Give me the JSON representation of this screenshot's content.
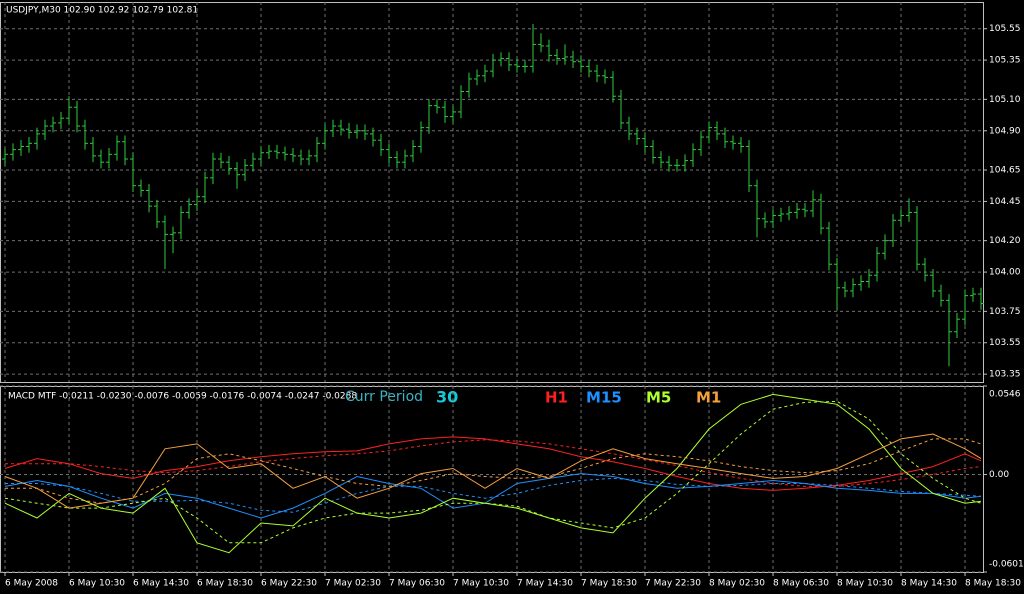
{
  "chart_data": [
    {
      "type": "ohlc",
      "title": "USDJPY,M30  102.90 102.92 102.79 102.81",
      "color": "#2ecc40",
      "grid": true,
      "xlim": [
        -0.625,
        122.25
      ],
      "ylim": [
        103.3,
        105.72
      ],
      "yticks": [
        105.55,
        105.35,
        {
          "value": 105.1,
          "label": "105.10"
        },
        {
          "value": 104.9,
          "label": "104.90"
        },
        104.65,
        104.45,
        {
          "value": 104.2,
          "label": "104.20"
        },
        {
          "value": 104.0,
          "label": "104.00"
        },
        103.75,
        103.55,
        103.35
      ],
      "open": [
        104.72,
        104.75,
        104.78,
        104.8,
        104.82,
        104.88,
        104.93,
        104.95,
        104.98,
        105.05,
        104.93,
        104.82,
        104.74,
        104.7,
        104.75,
        104.83,
        104.72,
        104.55,
        104.52,
        104.42,
        104.32,
        104.24,
        104.25,
        104.38,
        104.43,
        104.48,
        104.6,
        104.72,
        104.7,
        104.66,
        104.62,
        104.68,
        104.72,
        104.76,
        104.77,
        104.76,
        104.75,
        104.74,
        104.72,
        104.74,
        104.82,
        104.9,
        104.93,
        104.91,
        104.89,
        104.9,
        104.88,
        104.84,
        104.78,
        104.73,
        104.7,
        104.74,
        104.8,
        104.92,
        105.06,
        105.05,
        104.99,
        105.02,
        105.15,
        105.23,
        105.25,
        105.28,
        105.35,
        105.36,
        105.32,
        105.31,
        105.31,
        105.45,
        105.44,
        105.38,
        105.36,
        105.37,
        105.34,
        105.31,
        105.28,
        105.25,
        105.24,
        105.12,
        104.95,
        104.88,
        104.85,
        104.8,
        104.73,
        104.7,
        104.68,
        104.68,
        104.71,
        104.78,
        104.86,
        104.92,
        104.88,
        104.83,
        104.82,
        104.8,
        104.55,
        104.34,
        104.32,
        104.36,
        104.37,
        104.38,
        104.4,
        104.39,
        104.46,
        104.28,
        104.05,
        103.9,
        103.88,
        103.92,
        103.94,
        103.98,
        104.12,
        104.2,
        104.33,
        104.36,
        104.38,
        104.05,
        103.98,
        103.88,
        103.82,
        103.62,
        103.7,
        103.85,
        103.86
      ],
      "high": [
        104.79,
        104.82,
        104.84,
        104.86,
        104.92,
        104.97,
        104.99,
        105.02,
        105.12,
        105.09,
        104.97,
        104.86,
        104.78,
        104.79,
        104.87,
        104.87,
        104.76,
        104.59,
        104.56,
        104.46,
        104.36,
        104.29,
        104.42,
        104.47,
        104.52,
        104.64,
        104.76,
        104.76,
        104.74,
        104.7,
        104.72,
        104.76,
        104.8,
        104.81,
        104.81,
        104.8,
        104.79,
        104.78,
        104.78,
        104.86,
        104.94,
        104.97,
        104.97,
        104.95,
        104.94,
        104.94,
        104.92,
        104.88,
        104.82,
        104.77,
        104.78,
        104.84,
        104.96,
        105.1,
        105.1,
        105.09,
        105.06,
        105.19,
        105.27,
        105.29,
        105.32,
        105.39,
        105.4,
        105.4,
        105.36,
        105.35,
        105.58,
        105.52,
        105.48,
        105.42,
        105.45,
        105.41,
        105.38,
        105.35,
        105.32,
        105.29,
        105.28,
        105.16,
        104.99,
        104.92,
        104.89,
        104.84,
        104.77,
        104.74,
        104.72,
        104.75,
        104.82,
        104.9,
        104.96,
        104.96,
        104.92,
        104.87,
        104.86,
        104.84,
        104.59,
        104.38,
        104.4,
        104.41,
        104.42,
        104.44,
        104.44,
        104.52,
        104.5,
        104.32,
        104.09,
        103.94,
        103.96,
        103.98,
        104.02,
        104.16,
        104.24,
        104.37,
        104.4,
        104.47,
        104.42,
        104.09,
        104.02,
        103.92,
        103.86,
        103.74,
        103.89,
        103.9,
        103.9
      ],
      "low": [
        104.68,
        104.71,
        104.74,
        104.76,
        104.78,
        104.84,
        104.89,
        104.91,
        104.94,
        104.89,
        104.78,
        104.7,
        104.66,
        104.66,
        104.71,
        104.68,
        104.51,
        104.48,
        104.38,
        104.28,
        104.02,
        104.12,
        104.21,
        104.34,
        104.39,
        104.44,
        104.56,
        104.66,
        104.62,
        104.53,
        104.58,
        104.64,
        104.68,
        104.72,
        104.72,
        104.71,
        104.7,
        104.68,
        104.68,
        104.7,
        104.78,
        104.86,
        104.87,
        104.85,
        104.85,
        104.84,
        104.8,
        104.74,
        104.69,
        104.66,
        104.66,
        104.7,
        104.76,
        104.88,
        105.01,
        104.95,
        104.95,
        104.98,
        105.11,
        105.19,
        105.21,
        105.24,
        105.31,
        105.28,
        105.27,
        105.27,
        105.27,
        105.4,
        105.34,
        105.32,
        105.32,
        105.3,
        105.27,
        105.24,
        105.21,
        105.2,
        105.08,
        104.91,
        104.84,
        104.81,
        104.76,
        104.69,
        104.66,
        104.64,
        104.64,
        104.64,
        104.67,
        104.74,
        104.82,
        104.84,
        104.79,
        104.78,
        104.76,
        104.51,
        104.22,
        104.28,
        104.28,
        104.32,
        104.33,
        104.34,
        104.35,
        104.35,
        104.24,
        104.01,
        103.76,
        103.84,
        103.84,
        103.88,
        103.9,
        103.94,
        104.08,
        104.16,
        104.29,
        104.32,
        104.01,
        103.94,
        103.84,
        103.78,
        103.4,
        103.58,
        103.66,
        103.81,
        103.76
      ],
      "close": [
        104.75,
        104.78,
        104.8,
        104.82,
        104.88,
        104.93,
        104.95,
        104.98,
        105.05,
        104.93,
        104.82,
        104.74,
        104.7,
        104.75,
        104.83,
        104.72,
        104.55,
        104.52,
        104.42,
        104.32,
        104.24,
        104.25,
        104.38,
        104.43,
        104.48,
        104.6,
        104.72,
        104.7,
        104.66,
        104.62,
        104.68,
        104.72,
        104.76,
        104.77,
        104.76,
        104.75,
        104.74,
        104.72,
        104.74,
        104.82,
        104.9,
        104.93,
        104.91,
        104.89,
        104.9,
        104.88,
        104.84,
        104.78,
        104.73,
        104.7,
        104.74,
        104.8,
        104.92,
        105.06,
        105.05,
        104.99,
        105.02,
        105.15,
        105.23,
        105.25,
        105.28,
        105.35,
        105.36,
        105.32,
        105.31,
        105.31,
        105.45,
        105.44,
        105.38,
        105.36,
        105.37,
        105.34,
        105.31,
        105.28,
        105.25,
        105.24,
        105.12,
        104.95,
        104.88,
        104.85,
        104.8,
        104.73,
        104.7,
        104.68,
        104.68,
        104.71,
        104.78,
        104.86,
        104.92,
        104.88,
        104.83,
        104.82,
        104.8,
        104.55,
        104.34,
        104.32,
        104.36,
        104.37,
        104.38,
        104.4,
        104.39,
        104.46,
        104.28,
        104.05,
        103.9,
        103.88,
        103.92,
        103.94,
        103.98,
        104.12,
        104.2,
        104.33,
        104.36,
        104.38,
        104.05,
        103.98,
        103.88,
        103.82,
        103.62,
        103.7,
        103.85,
        103.86,
        103.8
      ]
    },
    {
      "type": "line",
      "title": "MACD MTF -0.0211 -0.0230 -0.0076 -0.0059 -0.0176 -0.0074 -0.0247 -0.0288",
      "grid": true,
      "annotations": [
        "Curr Period",
        "30"
      ],
      "xlim": [
        -0.625,
        122.25
      ],
      "ylim": [
        -0.0601,
        0.0546
      ],
      "yticks": [
        0.0546,
        {
          "value": 0,
          "label": "0.00"
        },
        -0.0601
      ],
      "xticks": [
        {
          "value": 0,
          "label": "6 May 2008"
        },
        {
          "value": 8,
          "label": "6 May 10:30"
        },
        {
          "value": 16,
          "label": "6 May 14:30"
        },
        {
          "value": 24,
          "label": "6 May 18:30"
        },
        {
          "value": 32,
          "label": "6 May 22:30"
        },
        {
          "value": 40,
          "label": "7 May 02:30"
        },
        {
          "value": 48,
          "label": "7 May 06:30"
        },
        {
          "value": 56,
          "label": "7 May 10:30"
        },
        {
          "value": 64,
          "label": "7 May 14:30"
        },
        {
          "value": 72,
          "label": "7 May 18:30"
        },
        {
          "value": 80,
          "label": "7 May 22:30"
        },
        {
          "value": 88,
          "label": "8 May 02:30"
        },
        {
          "value": 96,
          "label": "8 May 06:30"
        },
        {
          "value": 104,
          "label": "8 May 10:30"
        },
        {
          "value": 112,
          "label": "8 May 14:30"
        },
        {
          "value": 120,
          "label": "8 May 18:30"
        }
      ],
      "x": [
        0,
        4,
        8,
        12,
        16,
        20,
        24,
        28,
        32,
        36,
        40,
        44,
        48,
        52,
        56,
        60,
        64,
        68,
        72,
        76,
        80,
        84,
        88,
        92,
        96,
        100,
        104,
        108,
        112,
        116,
        120,
        122
      ],
      "series": [
        {
          "name": "H1",
          "color": "#ff2020",
          "values": [
            0.0037,
            0.0098,
            0.0067,
            0.0006,
            -0.0024,
            0.0024,
            0.0049,
            0.0085,
            0.011,
            0.0128,
            0.014,
            0.0146,
            0.0189,
            0.022,
            0.0232,
            0.022,
            0.0189,
            0.0159,
            0.011,
            0.0079,
            0.0037,
            -0.0012,
            -0.0055,
            -0.0085,
            -0.0098,
            -0.0085,
            -0.0067,
            -0.0037,
            0.0006,
            0.0049,
            0.0128,
            0.0085
          ],
          "signal": [
            0.0067,
            0.0067,
            0.0067,
            0.0049,
            0.0024,
            0.0012,
            0.0024,
            0.0049,
            0.0079,
            0.0098,
            0.0116,
            0.0128,
            0.0146,
            0.0177,
            0.0201,
            0.0214,
            0.0207,
            0.0189,
            0.0159,
            0.0128,
            0.0092,
            0.0055,
            0.0012,
            -0.0024,
            -0.0055,
            -0.0073,
            -0.0073,
            -0.0055,
            -0.0031,
            0.0,
            0.0037,
            0.0049
          ]
        },
        {
          "name": "M15",
          "color": "#1e90ff",
          "values": [
            -0.0073,
            -0.0037,
            -0.0073,
            -0.0146,
            -0.0207,
            -0.0116,
            -0.0146,
            -0.0207,
            -0.0268,
            -0.0207,
            -0.0116,
            -0.0012,
            -0.0055,
            -0.0085,
            -0.0207,
            -0.0177,
            -0.0055,
            -0.0024,
            0.0006,
            -0.0012,
            -0.0055,
            -0.0085,
            -0.0073,
            -0.0055,
            -0.0037,
            -0.0055,
            -0.0085,
            -0.0098,
            -0.0116,
            -0.0116,
            -0.0146,
            -0.0134
          ],
          "signal": [
            -0.0055,
            -0.0055,
            -0.0073,
            -0.0116,
            -0.0165,
            -0.0165,
            -0.0159,
            -0.0177,
            -0.022,
            -0.0232,
            -0.0177,
            -0.0116,
            -0.0073,
            -0.0073,
            -0.0116,
            -0.0146,
            -0.0116,
            -0.0067,
            -0.0037,
            -0.0024,
            -0.0037,
            -0.0061,
            -0.0073,
            -0.0067,
            -0.0055,
            -0.0055,
            -0.0067,
            -0.0085,
            -0.0104,
            -0.0116,
            -0.0128,
            -0.0134
          ]
        },
        {
          "name": "M5",
          "color": "#adff2f",
          "values": [
            -0.0177,
            -0.0268,
            -0.0116,
            -0.0207,
            -0.0238,
            -0.0085,
            -0.0421,
            -0.0482,
            -0.0299,
            -0.0317,
            -0.0146,
            -0.0238,
            -0.0268,
            -0.0238,
            -0.0146,
            -0.0177,
            -0.0207,
            -0.0268,
            -0.0329,
            -0.036,
            -0.0146,
            0.0037,
            0.0281,
            0.0433,
            0.0494,
            0.0464,
            0.0433,
            0.0281,
            0.0037,
            -0.0116,
            -0.0177,
            -0.0165
          ],
          "signal": [
            -0.0146,
            -0.0177,
            -0.0207,
            -0.0207,
            -0.0177,
            -0.0146,
            -0.0268,
            -0.0421,
            -0.0421,
            -0.0329,
            -0.0268,
            -0.0238,
            -0.0238,
            -0.022,
            -0.0177,
            -0.0177,
            -0.0195,
            -0.0268,
            -0.0299,
            -0.0329,
            -0.0268,
            -0.0116,
            0.0067,
            0.025,
            0.0403,
            0.0445,
            0.0451,
            0.0342,
            0.0128,
            -0.0024,
            -0.0146,
            -0.0177
          ]
        },
        {
          "name": "M1",
          "color": "#f4a040",
          "values": [
            -0.0012,
            -0.0085,
            -0.0207,
            -0.0177,
            -0.0146,
            0.0159,
            0.0189,
            0.0037,
            0.0067,
            -0.0085,
            -0.0012,
            -0.0146,
            -0.0085,
            0.0006,
            0.0037,
            -0.0085,
            0.0037,
            -0.0024,
            0.0085,
            0.0159,
            0.0098,
            0.0067,
            0.0037,
            0.0006,
            -0.0024,
            -0.0012,
            0.0037,
            0.0128,
            0.022,
            0.025,
            0.0159,
            0.0098
          ],
          "signal": [
            -0.0085,
            -0.0085,
            -0.0146,
            -0.0177,
            -0.0146,
            -0.0055,
            0.0098,
            0.0128,
            0.0085,
            0.0037,
            -0.0012,
            -0.0055,
            -0.0073,
            -0.0037,
            0.0006,
            -0.0012,
            -0.0024,
            -0.0012,
            0.0037,
            0.0098,
            0.0128,
            0.011,
            0.0085,
            0.0049,
            0.0024,
            0.0012,
            0.0024,
            0.0067,
            0.0146,
            0.022,
            0.022,
            0.0189
          ]
        }
      ]
    }
  ]
}
